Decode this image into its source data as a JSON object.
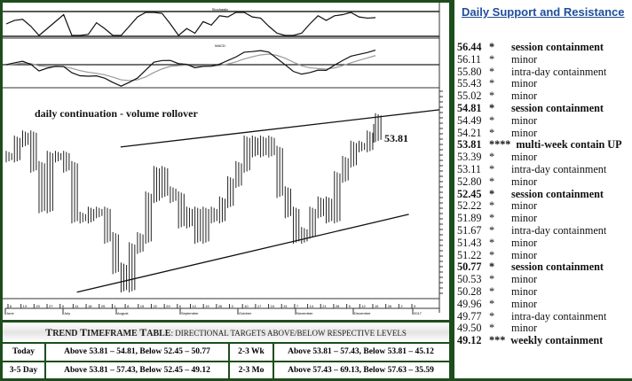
{
  "chart": {
    "indicator1_title": "Stochastic",
    "macd_title": "MACD",
    "annotation": "daily continuation - volume rollover",
    "price_label": "53.81",
    "x_months": [
      "June",
      "July",
      "August",
      "September",
      "October",
      "November",
      "December",
      "2017"
    ],
    "x_days": [
      "6",
      "13",
      "20",
      "27",
      "5",
      "11",
      "18",
      "25",
      "1",
      "8",
      "15",
      "22",
      "29",
      "6",
      "12",
      "19",
      "26",
      "3",
      "10",
      "17",
      "24",
      "31",
      "7",
      "14",
      "21",
      "28",
      "5",
      "12",
      "19",
      "26",
      "2",
      "9"
    ]
  },
  "chart_data": {
    "type": "bar",
    "closes": [
      50.57,
      51.88,
      52.32,
      49.69,
      46.2,
      50.57,
      50.57,
      49.69,
      45.32,
      45.32,
      45.76,
      45.76,
      43.57,
      40.95,
      39.38,
      42.7,
      43.57,
      47.07,
      49.26,
      47.51,
      47.07,
      44.89,
      45.76,
      43.57,
      45.76,
      45.32,
      46.64,
      48.38,
      49.69,
      51.88,
      51.0,
      51.88,
      51.0,
      47.51,
      45.76,
      43.57,
      44.01,
      45.76,
      46.64,
      45.32,
      48.82,
      50.13,
      51.44,
      51.44,
      52.32,
      53.81
    ],
    "ylim": [
      38.5,
      56.5
    ],
    "channel": {
      "upper": [
        [
          0.27,
          51.4
        ],
        [
          1.0,
          54.6
        ]
      ],
      "lower": [
        [
          0.17,
          38.9
        ],
        [
          0.93,
          45.6
        ]
      ]
    }
  },
  "sr": {
    "title": "Daily Support and Resistance",
    "levels": [
      {
        "price": "56.44",
        "stars": "*",
        "note": "session containment",
        "bold": true
      },
      {
        "price": "56.11",
        "stars": "*",
        "note": "minor"
      },
      {
        "price": "55.80",
        "stars": "*",
        "note": "intra-day containment"
      },
      {
        "price": "55.43",
        "stars": "*",
        "note": "minor"
      },
      {
        "price": "55.02",
        "stars": "*",
        "note": "minor"
      },
      {
        "price": "54.81",
        "stars": "*",
        "note": "session containment",
        "bold": true
      },
      {
        "price": "54.49",
        "stars": "*",
        "note": "minor"
      },
      {
        "price": "54.21",
        "stars": "*",
        "note": "minor"
      },
      {
        "price": "53.81",
        "stars": "****",
        "note": "multi-week contain UP",
        "bold": true
      },
      {
        "price": "53.39",
        "stars": "*",
        "note": "minor"
      },
      {
        "price": "53.11",
        "stars": "*",
        "note": "intra-day containment"
      },
      {
        "price": "52.80",
        "stars": "*",
        "note": "minor"
      },
      {
        "price": "52.45",
        "stars": "*",
        "note": "session containment",
        "bold": true
      },
      {
        "price": "52.22",
        "stars": "*",
        "note": "minor"
      },
      {
        "price": "51.89",
        "stars": "*",
        "note": "minor"
      },
      {
        "price": "51.67",
        "stars": "*",
        "note": "intra-day containment"
      },
      {
        "price": "51.43",
        "stars": "*",
        "note": "minor"
      },
      {
        "price": "51.22",
        "stars": "*",
        "note": "minor"
      },
      {
        "price": "50.77",
        "stars": "*",
        "note": "session containment",
        "bold": true
      },
      {
        "price": "50.53",
        "stars": "*",
        "note": "minor"
      },
      {
        "price": "50.28",
        "stars": "*",
        "note": "minor"
      },
      {
        "price": "49.96",
        "stars": "*",
        "note": "minor"
      },
      {
        "price": "49.77",
        "stars": "*",
        "note": "intra-day containment"
      },
      {
        "price": "49.50",
        "stars": "*",
        "note": "minor"
      },
      {
        "price": "49.12",
        "stars": "***",
        "note": "weekly containment",
        "bold": true
      }
    ]
  },
  "table": {
    "title_big1": "T",
    "title_rest1": "REND ",
    "title_big2": "T",
    "title_rest2": "IMEFRAME ",
    "title_big3": "T",
    "title_rest3": "ABLE",
    "subtitle": ": directional targets above/below respective levels",
    "rows": [
      {
        "p1": "Today",
        "t1": "Above 53.81 – 54.81, Below 52.45 – 50.77",
        "p2": "2-3 Wk",
        "t2": "Above 53.81 – 57.43, Below 53.81 – 45.12"
      },
      {
        "p1": "3-5 Day",
        "t1": "Above 53.81 – 57.43, Below 52.45 – 49.12",
        "p2": "2-3 Mo",
        "t2": "Above  57.43 – 69.13, Below 57.63 – 35.59"
      }
    ]
  }
}
